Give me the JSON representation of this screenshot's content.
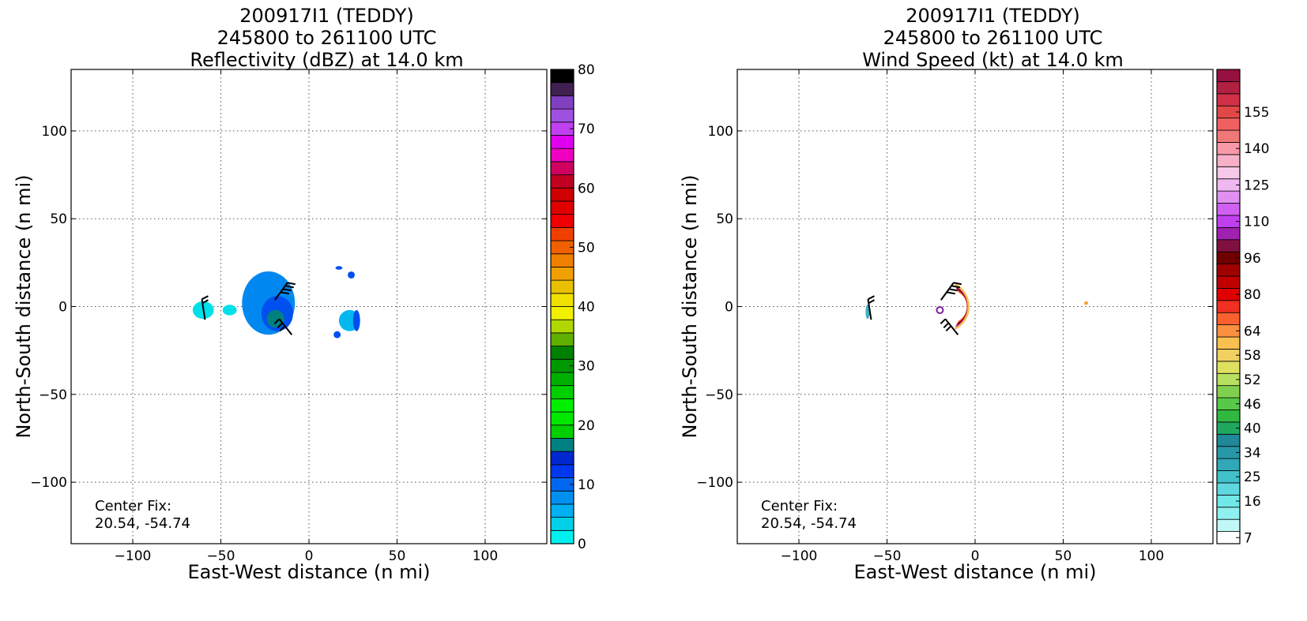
{
  "chart_data": [
    {
      "type": "heatmap",
      "title_lines": [
        "200917I1 (TEDDY)",
        "245800 to 261100 UTC",
        "Reflectivity (dBZ) at 14.0 km"
      ],
      "xlabel": "East-West distance (n mi)",
      "ylabel": "North-South distance (n mi)",
      "xlim": [
        -135,
        135
      ],
      "ylim": [
        -135,
        135
      ],
      "x_ticks": [
        -100,
        -50,
        0,
        50,
        100
      ],
      "y_ticks": [
        -100,
        -50,
        0,
        50,
        100
      ],
      "x_tick_labels": [
        "−100",
        "−50",
        "0",
        "50",
        "100"
      ],
      "y_tick_labels": [
        "−100",
        "−50",
        "0",
        "50",
        "100"
      ],
      "grid": true,
      "annotation_lines": [
        "Center Fix:",
        "20.54, -54.74"
      ],
      "colorbar": {
        "min": 0,
        "max": 80,
        "tick_values": [
          0,
          10,
          20,
          30,
          40,
          50,
          60,
          70,
          80
        ],
        "tick_labels": [
          "0",
          "10",
          "20",
          "30",
          "40",
          "50",
          "60",
          "70",
          "80"
        ],
        "colors": [
          "#00f0f0",
          "#00d0e8",
          "#00b0f0",
          "#0090f0",
          "#0068f0",
          "#0038f0",
          "#0028d0",
          "#008080",
          "#00d000",
          "#00e800",
          "#00f000",
          "#00d000",
          "#00b000",
          "#009800",
          "#008000",
          "#60b000",
          "#b0d800",
          "#f0f000",
          "#f0e000",
          "#e8c000",
          "#f0a000",
          "#f08000",
          "#f06000",
          "#f04000",
          "#f00000",
          "#e00000",
          "#d00000",
          "#c00020",
          "#d00060",
          "#f000c0",
          "#e000f0",
          "#c040f0",
          "#a050e0",
          "#8040c0",
          "#402050",
          "#000000"
        ]
      },
      "echo_blobs": [
        {
          "cx": -60,
          "cy": -2,
          "rx": 6,
          "ry": 5,
          "color": "#00e0e8"
        },
        {
          "cx": -45,
          "cy": -2,
          "rx": 4,
          "ry": 3,
          "color": "#00e0e8"
        },
        {
          "cx": -23,
          "cy": 2,
          "rx": 15,
          "ry": 18,
          "color": "#0088f0"
        },
        {
          "cx": -18,
          "cy": -4,
          "rx": 9,
          "ry": 10,
          "color": "#0050f0"
        },
        {
          "cx": -19,
          "cy": -7,
          "rx": 5,
          "ry": 5,
          "color": "#008080"
        },
        {
          "cx": 23,
          "cy": -8,
          "rx": 6,
          "ry": 6,
          "color": "#00b8f0"
        },
        {
          "cx": 27,
          "cy": -8,
          "rx": 2,
          "ry": 6,
          "color": "#0050f0"
        },
        {
          "cx": 17,
          "cy": 22,
          "rx": 2,
          "ry": 1,
          "color": "#0050f0"
        },
        {
          "cx": 24,
          "cy": 18,
          "rx": 2,
          "ry": 2,
          "color": "#0050f0"
        },
        {
          "cx": 16,
          "cy": -16,
          "rx": 2,
          "ry": 2,
          "color": "#0050f0"
        }
      ],
      "wind_barbs": [
        {
          "x": -59,
          "y": -3,
          "dir": "north"
        },
        {
          "x": -14,
          "y": 10,
          "dir": "northeast"
        },
        {
          "x": -16,
          "y": -8,
          "dir": "northwest"
        }
      ]
    },
    {
      "type": "heatmap",
      "title_lines": [
        "200917I1 (TEDDY)",
        "245800 to 261100 UTC",
        "Wind Speed (kt) at 14.0 km"
      ],
      "xlabel": "East-West distance (n mi)",
      "ylabel": "North-South distance (n mi)",
      "xlim": [
        -135,
        135
      ],
      "ylim": [
        -135,
        135
      ],
      "x_ticks": [
        -100,
        -50,
        0,
        50,
        100
      ],
      "y_ticks": [
        -100,
        -50,
        0,
        50,
        100
      ],
      "x_tick_labels": [
        "−100",
        "−50",
        "0",
        "50",
        "100"
      ],
      "y_tick_labels": [
        "−100",
        "−50",
        "0",
        "50",
        "100"
      ],
      "grid": true,
      "annotation_lines": [
        "Center Fix:",
        "20.54, -54.74"
      ],
      "colorbar": {
        "tick_labels": [
          "7",
          "16",
          "25",
          "34",
          "40",
          "46",
          "52",
          "58",
          "64",
          "80",
          "96",
          "110",
          "125",
          "140",
          "155"
        ],
        "tick_bins": [
          0,
          3,
          5,
          7,
          9,
          11,
          13,
          15,
          17,
          20,
          23,
          26,
          29,
          32,
          35
        ],
        "colors": [
          "#ffffff",
          "#c0f8f8",
          "#90f0f0",
          "#70e8e8",
          "#60d8e0",
          "#40c0c8",
          "#30a8b8",
          "#2898a8",
          "#208898",
          "#20a860",
          "#30b840",
          "#58c848",
          "#80d050",
          "#b8e060",
          "#e0e060",
          "#f0d060",
          "#f8c050",
          "#f89040",
          "#f86030",
          "#f03020",
          "#e00000",
          "#c00000",
          "#a00000",
          "#700000",
          "#801040",
          "#a020b0",
          "#c040f0",
          "#d060f0",
          "#e090f0",
          "#f0b8f0",
          "#f8c8e8",
          "#f8b0c8",
          "#f898a8",
          "#f07878",
          "#f06060",
          "#e04848",
          "#d03048",
          "#b02040",
          "#981040"
        ]
      },
      "echo_blobs": [
        {
          "cx": -61,
          "cy": -3,
          "rx": 1.2,
          "ry": 4,
          "color": "#40b0c0"
        },
        {
          "cx": 63,
          "cy": 2,
          "rx": 1.2,
          "ry": 1,
          "color": "#f8a040"
        }
      ],
      "eyewall_arc": {
        "cx": -5,
        "cy": 0,
        "r": 12,
        "thickness": 4
      },
      "center_circle": {
        "x": -20,
        "y": -2
      },
      "wind_barbs": [
        {
          "x": -59,
          "y": -3,
          "dir": "north"
        },
        {
          "x": -14,
          "y": 10,
          "dir": "northeast"
        },
        {
          "x": -16,
          "y": -8,
          "dir": "northwest"
        }
      ]
    }
  ]
}
